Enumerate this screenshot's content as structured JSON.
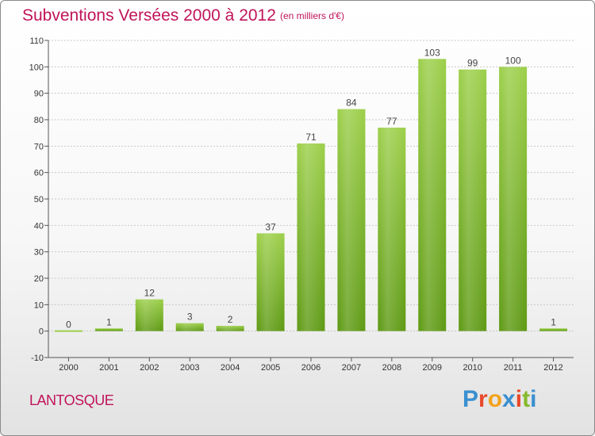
{
  "header": {
    "title": "Subventions Versées 2000 à 2012",
    "unit_note": "(en milliers d'€)"
  },
  "footer": {
    "commune": "LANTOSQUE",
    "logo_text": "Proxiti"
  },
  "colors": {
    "accent": "#c0145a",
    "bar_top": "#9ccf4a",
    "bar_bottom": "#5e9a14",
    "logo": [
      "#3a8fd0",
      "#e8492d",
      "#f2a31c",
      "#3a8fd0",
      "#e8492d",
      "#86b92b",
      "#3a8fd0"
    ]
  },
  "chart_data": {
    "type": "bar",
    "title": "Subventions Versées 2000 à 2012",
    "subtitle": "(en milliers d'€)",
    "categories": [
      "2000",
      "2001",
      "2002",
      "2003",
      "2004",
      "2005",
      "2006",
      "2007",
      "2008",
      "2009",
      "2010",
      "2011",
      "2012"
    ],
    "values": [
      0,
      1,
      12,
      3,
      2,
      37,
      71,
      84,
      77,
      103,
      99,
      100,
      1
    ],
    "ylim": [
      -10,
      110
    ],
    "yticks": [
      -10,
      0,
      10,
      20,
      30,
      40,
      50,
      60,
      70,
      80,
      90,
      100,
      110
    ],
    "grid": true,
    "data_labels": true
  }
}
